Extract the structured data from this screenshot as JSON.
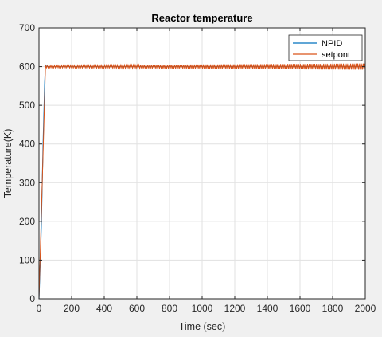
{
  "chart_data": {
    "type": "line",
    "title": "Reactor  temperature",
    "xlabel": "Time (sec)",
    "ylabel": "Temperature(K)",
    "xlim": [
      0,
      2000
    ],
    "ylim": [
      0,
      700
    ],
    "xticks": [
      0,
      200,
      400,
      600,
      800,
      1000,
      1200,
      1400,
      1600,
      1800,
      2000
    ],
    "yticks": [
      0,
      100,
      200,
      300,
      400,
      500,
      600,
      700
    ],
    "grid": true,
    "legend_position": "top-right",
    "series": [
      {
        "name": "NPID",
        "color": "#0072bd",
        "x": [
          0,
          5,
          10,
          15,
          20,
          25,
          30,
          35,
          40,
          45,
          50,
          2000
        ],
        "y": [
          0,
          60,
          120,
          200,
          300,
          400,
          480,
          560,
          605,
          600,
          600,
          600
        ]
      },
      {
        "name": "setpont",
        "color": "#d95319",
        "x": [
          0,
          40,
          2000
        ],
        "y": [
          0,
          600,
          600
        ],
        "oscillation": {
          "start": 40,
          "end": 2000,
          "period": 11,
          "amplitude_start": 3,
          "amplitude_end": 8
        }
      }
    ]
  },
  "colors": {
    "figure_bg": "#f0f0f0",
    "axes_bg": "#ffffff",
    "grid": "#e1e1e1",
    "axis": "#262626"
  }
}
